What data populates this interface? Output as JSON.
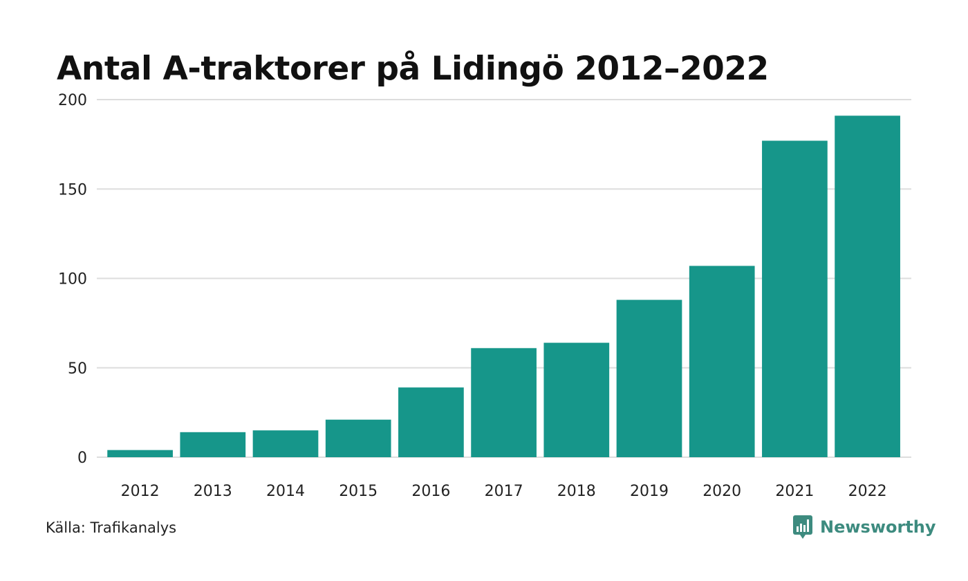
{
  "chart_data": {
    "type": "bar",
    "title": "Antal A-traktorer på Lidingö 2012–2022",
    "xlabel": "",
    "ylabel": "",
    "categories": [
      "2012",
      "2013",
      "2014",
      "2015",
      "2016",
      "2017",
      "2018",
      "2019",
      "2020",
      "2021",
      "2022"
    ],
    "values": [
      4,
      14,
      15,
      21,
      39,
      61,
      64,
      88,
      107,
      177,
      191
    ],
    "ylim": [
      0,
      200
    ],
    "yticks": [
      0,
      50,
      100,
      150,
      200
    ],
    "grid": true,
    "legend": "none"
  },
  "colors": {
    "bar": "#16968a",
    "grid": "#dddddd",
    "text": "#111111",
    "brand": "#3d8b7f"
  },
  "footer": {
    "source": "Källa: Trafikanalys",
    "brand": "Newsworthy"
  }
}
